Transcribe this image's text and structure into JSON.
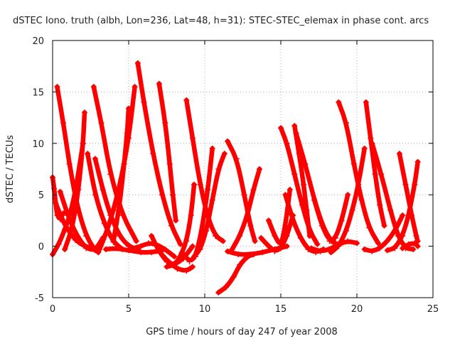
{
  "chart_data": {
    "type": "scatter",
    "title": "dSTEC Iono. truth (albh, Lon=236, Lat=48, h=31): STEC-STEC_elemax in phase cont. arcs",
    "xlabel": "GPS time / hours of day 247 of year 2008",
    "ylabel": "dSTEC  / TECUs",
    "xlim": [
      0,
      25
    ],
    "ylim": [
      -5,
      20
    ],
    "xticks": [
      0,
      5,
      10,
      15,
      20,
      25
    ],
    "yticks": [
      -5,
      0,
      5,
      10,
      15,
      20
    ],
    "xtick_labels": [
      "0",
      "5",
      "10",
      "15",
      "20",
      "25"
    ],
    "ytick_labels": [
      "-5",
      "0",
      "5",
      "10",
      "15",
      "20"
    ],
    "grid": true,
    "legend": "none",
    "marker": "plus",
    "color": "#ff0000",
    "series": [
      {
        "x": [
          0.0,
          0.1,
          0.2,
          0.3,
          0.5,
          0.7
        ],
        "y": [
          6.7,
          5.6,
          4.2,
          3.0,
          2.6,
          3.2
        ]
      },
      {
        "x": [
          0.0,
          0.4,
          0.8,
          1.2,
          1.6,
          2.0
        ],
        "y": [
          -0.8,
          0.2,
          1.6,
          3.3,
          6.2,
          10.0
        ]
      },
      {
        "x": [
          0.3,
          0.7,
          1.1,
          1.6,
          2.2,
          2.8
        ],
        "y": [
          15.5,
          12.0,
          8.0,
          4.0,
          1.0,
          -0.4
        ]
      },
      {
        "x": [
          0.2,
          0.6,
          1.0,
          1.5,
          2.1,
          2.7
        ],
        "y": [
          4.2,
          2.7,
          1.6,
          0.6,
          0.0,
          -0.2
        ]
      },
      {
        "x": [
          0.5,
          1.0,
          1.6,
          2.2,
          2.8,
          3.3
        ],
        "y": [
          5.3,
          3.0,
          1.0,
          -0.2,
          -0.4,
          0.8
        ]
      },
      {
        "x": [
          0.8,
          1.3,
          1.7,
          2.0,
          2.1
        ],
        "y": [
          -0.3,
          1.8,
          5.5,
          10.0,
          13.0
        ]
      },
      {
        "x": [
          2.3,
          2.8,
          3.4,
          4.0,
          4.6
        ],
        "y": [
          9.0,
          5.0,
          2.2,
          0.4,
          -0.3
        ]
      },
      {
        "x": [
          2.7,
          3.2,
          3.8,
          4.6,
          5.5
        ],
        "y": [
          15.5,
          12.0,
          7.0,
          3.0,
          0.5
        ]
      },
      {
        "x": [
          2.8,
          3.3,
          3.8,
          4.4,
          5.0,
          5.6
        ],
        "y": [
          8.5,
          5.5,
          3.0,
          1.0,
          0.0,
          -0.3
        ]
      },
      {
        "x": [
          3.0,
          3.5,
          4.0,
          4.5,
          5.0,
          5.4
        ],
        "y": [
          -0.6,
          1.2,
          3.5,
          6.5,
          10.5,
          15.5
        ]
      },
      {
        "x": [
          3.5,
          4.2,
          5.0,
          5.8,
          6.5,
          7.2
        ],
        "y": [
          -0.3,
          -0.2,
          -0.4,
          -0.6,
          -0.6,
          -0.4
        ]
      },
      {
        "x": [
          4.0,
          4.4,
          4.7,
          4.9,
          5.0
        ],
        "y": [
          0.5,
          4.0,
          8.0,
          11.0,
          13.4
        ]
      },
      {
        "x": [
          5.6,
          6.0,
          6.6,
          7.2,
          7.8,
          8.4
        ],
        "y": [
          17.8,
          14.0,
          9.0,
          5.0,
          2.0,
          0.2
        ]
      },
      {
        "x": [
          5.3,
          5.8,
          6.3,
          6.8,
          7.4,
          8.0
        ],
        "y": [
          -0.2,
          0.0,
          0.3,
          0.2,
          -0.3,
          -1.0
        ]
      },
      {
        "x": [
          6.5,
          7.0,
          7.5,
          8.0,
          8.6,
          9.2
        ],
        "y": [
          1.0,
          -0.5,
          -1.5,
          -1.8,
          -1.2,
          0.0
        ]
      },
      {
        "x": [
          7.0,
          7.4,
          7.7,
          7.9,
          8.1
        ],
        "y": [
          15.8,
          12.0,
          8.0,
          5.0,
          2.5
        ]
      },
      {
        "x": [
          7.0,
          7.6,
          8.2,
          8.8,
          9.2
        ],
        "y": [
          -0.5,
          -1.5,
          -2.2,
          -2.4,
          -2.0
        ]
      },
      {
        "x": [
          7.5,
          8.0,
          8.4,
          8.8,
          9.1,
          9.3
        ],
        "y": [
          -2.0,
          -1.8,
          -1.0,
          0.5,
          3.0,
          6.0
        ]
      },
      {
        "x": [
          8.8,
          9.2,
          9.7,
          10.2,
          10.7,
          11.2
        ],
        "y": [
          14.2,
          10.5,
          6.0,
          2.8,
          1.0,
          0.5
        ]
      },
      {
        "x": [
          8.5,
          9.0,
          9.4,
          9.8,
          10.2,
          10.5
        ],
        "y": [
          -0.6,
          -1.5,
          -1.0,
          1.5,
          5.5,
          9.5
        ]
      },
      {
        "x": [
          9.3,
          9.7,
          10.1,
          10.5,
          10.9,
          11.3
        ],
        "y": [
          -1.0,
          -0.3,
          1.5,
          4.5,
          7.5,
          9.0
        ]
      },
      {
        "x": [
          10.9,
          11.4,
          11.9,
          12.3,
          12.8,
          13.2
        ],
        "y": [
          -4.5,
          -4.0,
          -3.0,
          -1.8,
          -1.0,
          -0.8
        ]
      },
      {
        "x": [
          11.5,
          12.1,
          12.6,
          13.0,
          13.3
        ],
        "y": [
          10.2,
          8.5,
          5.0,
          2.0,
          0.5
        ]
      },
      {
        "x": [
          11.5,
          12.2,
          13.0,
          13.8,
          14.6,
          15.4
        ],
        "y": [
          -0.5,
          -0.8,
          -0.8,
          -0.6,
          -0.3,
          0.0
        ]
      },
      {
        "x": [
          11.8,
          12.3,
          12.8,
          13.2,
          13.6
        ],
        "y": [
          -0.3,
          1.0,
          3.0,
          5.5,
          7.5
        ]
      },
      {
        "x": [
          13.7,
          14.2,
          14.6,
          15.0,
          15.4,
          15.8
        ],
        "y": [
          0.8,
          0.0,
          -0.5,
          -0.2,
          1.0,
          3.0
        ]
      },
      {
        "x": [
          14.2,
          14.6,
          15.0,
          15.3,
          15.6
        ],
        "y": [
          2.5,
          1.0,
          0.0,
          2.0,
          5.5
        ]
      },
      {
        "x": [
          15.0,
          15.4,
          15.9,
          16.4,
          16.9,
          17.4
        ],
        "y": [
          11.5,
          10.0,
          7.0,
          4.0,
          1.5,
          0.2
        ]
      },
      {
        "x": [
          15.9,
          16.2,
          16.5,
          16.7,
          16.9
        ],
        "y": [
          11.7,
          9.0,
          6.0,
          3.5,
          1.0
        ]
      },
      {
        "x": [
          15.3,
          15.8,
          16.3,
          16.8,
          17.3,
          17.8
        ],
        "y": [
          5.0,
          2.5,
          0.8,
          -0.3,
          -0.6,
          -0.3
        ]
      },
      {
        "x": [
          16.0,
          16.6,
          17.2,
          17.8,
          18.3,
          18.7
        ],
        "y": [
          11.0,
          8.0,
          4.5,
          1.8,
          0.5,
          0.2
        ]
      },
      {
        "x": [
          17.0,
          17.6,
          18.2,
          18.8,
          19.4,
          20.0
        ],
        "y": [
          -0.2,
          -0.5,
          -0.3,
          0.2,
          0.5,
          0.3
        ]
      },
      {
        "x": [
          17.2,
          17.7,
          18.2,
          18.6,
          19.0,
          19.4
        ],
        "y": [
          4.5,
          2.0,
          0.5,
          0.8,
          2.5,
          5.0
        ]
      },
      {
        "x": [
          18.8,
          19.3,
          19.8,
          20.3,
          20.8,
          21.4
        ],
        "y": [
          14.0,
          12.0,
          8.0,
          4.5,
          1.8,
          0.3
        ]
      },
      {
        "x": [
          18.3,
          18.8,
          19.3,
          19.7,
          20.1,
          20.5
        ],
        "y": [
          -0.6,
          0.0,
          1.5,
          3.5,
          6.0,
          9.5
        ]
      },
      {
        "x": [
          20.6,
          20.9,
          21.2,
          21.5,
          21.8
        ],
        "y": [
          14.0,
          10.5,
          7.0,
          4.0,
          2.0
        ]
      },
      {
        "x": [
          20.5,
          21.0,
          21.5,
          22.0,
          22.5,
          23.0
        ],
        "y": [
          -0.3,
          -0.5,
          -0.2,
          0.5,
          1.5,
          3.0
        ]
      },
      {
        "x": [
          21.0,
          21.6,
          22.2,
          22.7,
          23.2,
          23.7
        ],
        "y": [
          10.0,
          7.0,
          3.5,
          1.0,
          -0.2,
          -0.3
        ]
      },
      {
        "x": [
          22.0,
          22.5,
          23.0,
          23.4,
          23.8,
          24.0
        ],
        "y": [
          -0.4,
          -0.2,
          1.0,
          3.0,
          6.0,
          8.2
        ]
      },
      {
        "x": [
          22.8,
          23.2,
          23.6,
          23.9,
          24.0
        ],
        "y": [
          9.0,
          6.0,
          3.0,
          1.0,
          0.5
        ]
      },
      {
        "x": [
          23.0,
          23.4,
          23.8,
          24.0
        ],
        "y": [
          -0.2,
          0.2,
          0.3,
          0.0
        ]
      }
    ]
  }
}
